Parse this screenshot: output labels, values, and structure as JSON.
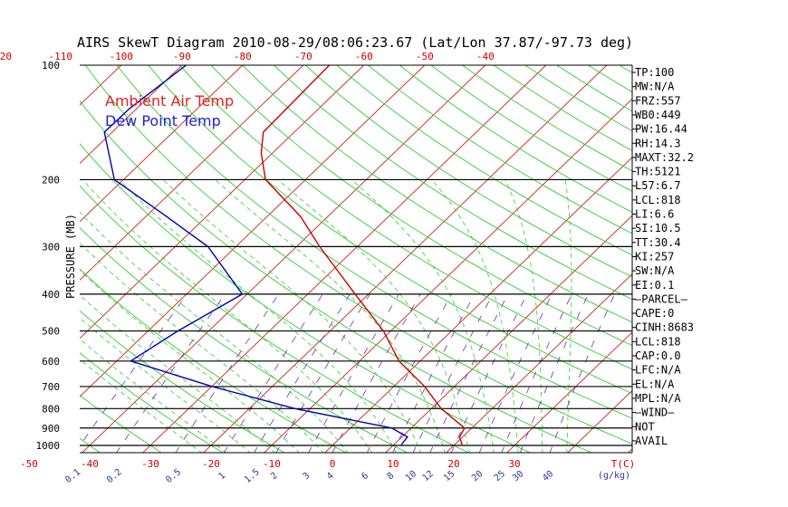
{
  "chart_data": {
    "type": "line",
    "subtype": "skew-t log-p",
    "title": "AIRS SkewT Diagram 2010-08-29/08:06:23.67 (Lat/Lon 37.87/-97.73 deg)",
    "ylabel": "PRESSURE (MB)",
    "y_scale": "log",
    "ylim": [
      1050,
      100
    ],
    "yticks": [
      "100",
      "200",
      "300",
      "400",
      "500",
      "600",
      "700",
      "800",
      "900",
      "1000"
    ],
    "top_temp_ticks": [
      "-120",
      "-110",
      "-100",
      "-90",
      "-80",
      "-70",
      "-60",
      "-50",
      "-40"
    ],
    "bottom_temp_ticks": [
      "-50",
      "-40",
      "-30",
      "-20",
      "-10",
      "0",
      "10",
      "20",
      "30"
    ],
    "bottom_temp_unit": "T(C)",
    "mixing_ratio_ticks": [
      "0.1",
      "0.2",
      "0.5",
      "1",
      "1.5",
      "2",
      "3",
      "4",
      "6",
      "8",
      "10",
      "12",
      "15",
      "20",
      "25",
      "30",
      "40"
    ],
    "mixing_ratio_unit": "(g/kg)",
    "legend": [
      {
        "label": "Ambient Air Temp",
        "color": "#dd2222"
      },
      {
        "label": "Dew Point Temp",
        "color": "#2222cc"
      }
    ],
    "series": [
      {
        "name": "Ambient Air Temp",
        "color": "#cc0000",
        "points": [
          {
            "p": 100,
            "t": -65.7
          },
          {
            "p": 150,
            "t": -65.1
          },
          {
            "p": 170,
            "t": -61.9
          },
          {
            "p": 200,
            "t": -56.6
          },
          {
            "p": 250,
            "t": -44.5
          },
          {
            "p": 300,
            "t": -36.2
          },
          {
            "p": 400,
            "t": -22.2
          },
          {
            "p": 500,
            "t": -11.2
          },
          {
            "p": 600,
            "t": -3.5
          },
          {
            "p": 700,
            "t": 5.1
          },
          {
            "p": 800,
            "t": 11.6
          },
          {
            "p": 900,
            "t": 18.8
          },
          {
            "p": 950,
            "t": 19.5
          },
          {
            "p": 1000,
            "t": 21.4
          }
        ]
      },
      {
        "name": "Dew Point Temp",
        "color": "#0000aa",
        "points": [
          {
            "p": 100,
            "t": -89.3
          },
          {
            "p": 130,
            "t": -91.2
          },
          {
            "p": 150,
            "t": -91.3
          },
          {
            "p": 200,
            "t": -81.5
          },
          {
            "p": 250,
            "t": -66.6
          },
          {
            "p": 300,
            "t": -54.6
          },
          {
            "p": 400,
            "t": -40.8
          },
          {
            "p": 500,
            "t": -45.1
          },
          {
            "p": 600,
            "t": -47.7
          },
          {
            "p": 700,
            "t": -29.9
          },
          {
            "p": 800,
            "t": -12.5
          },
          {
            "p": 900,
            "t": 6.8
          },
          {
            "p": 950,
            "t": 10.9
          },
          {
            "p": 1000,
            "t": 11.3
          }
        ]
      }
    ],
    "grid": true
  },
  "stats": [
    "TP:100",
    "MW:N/A",
    "FRZ:557",
    "WB0:449",
    "PW:16.44",
    "RH:14.3",
    "MAXT:32.2",
    "TH:5121",
    "L57:6.7",
    "LCL:818",
    "LI:6.6",
    "SI:10.5",
    "TT:30.4",
    "KI:257",
    "SW:N/A",
    "EI:0.1",
    "—PARCEL—",
    "CAPE:0",
    "CINH:8683",
    "LCL:818",
    "CAP:0.0",
    "LFC:N/A",
    "EL:N/A",
    "MPL:N/A",
    "—WIND—",
    "NOT",
    "AVAIL"
  ]
}
